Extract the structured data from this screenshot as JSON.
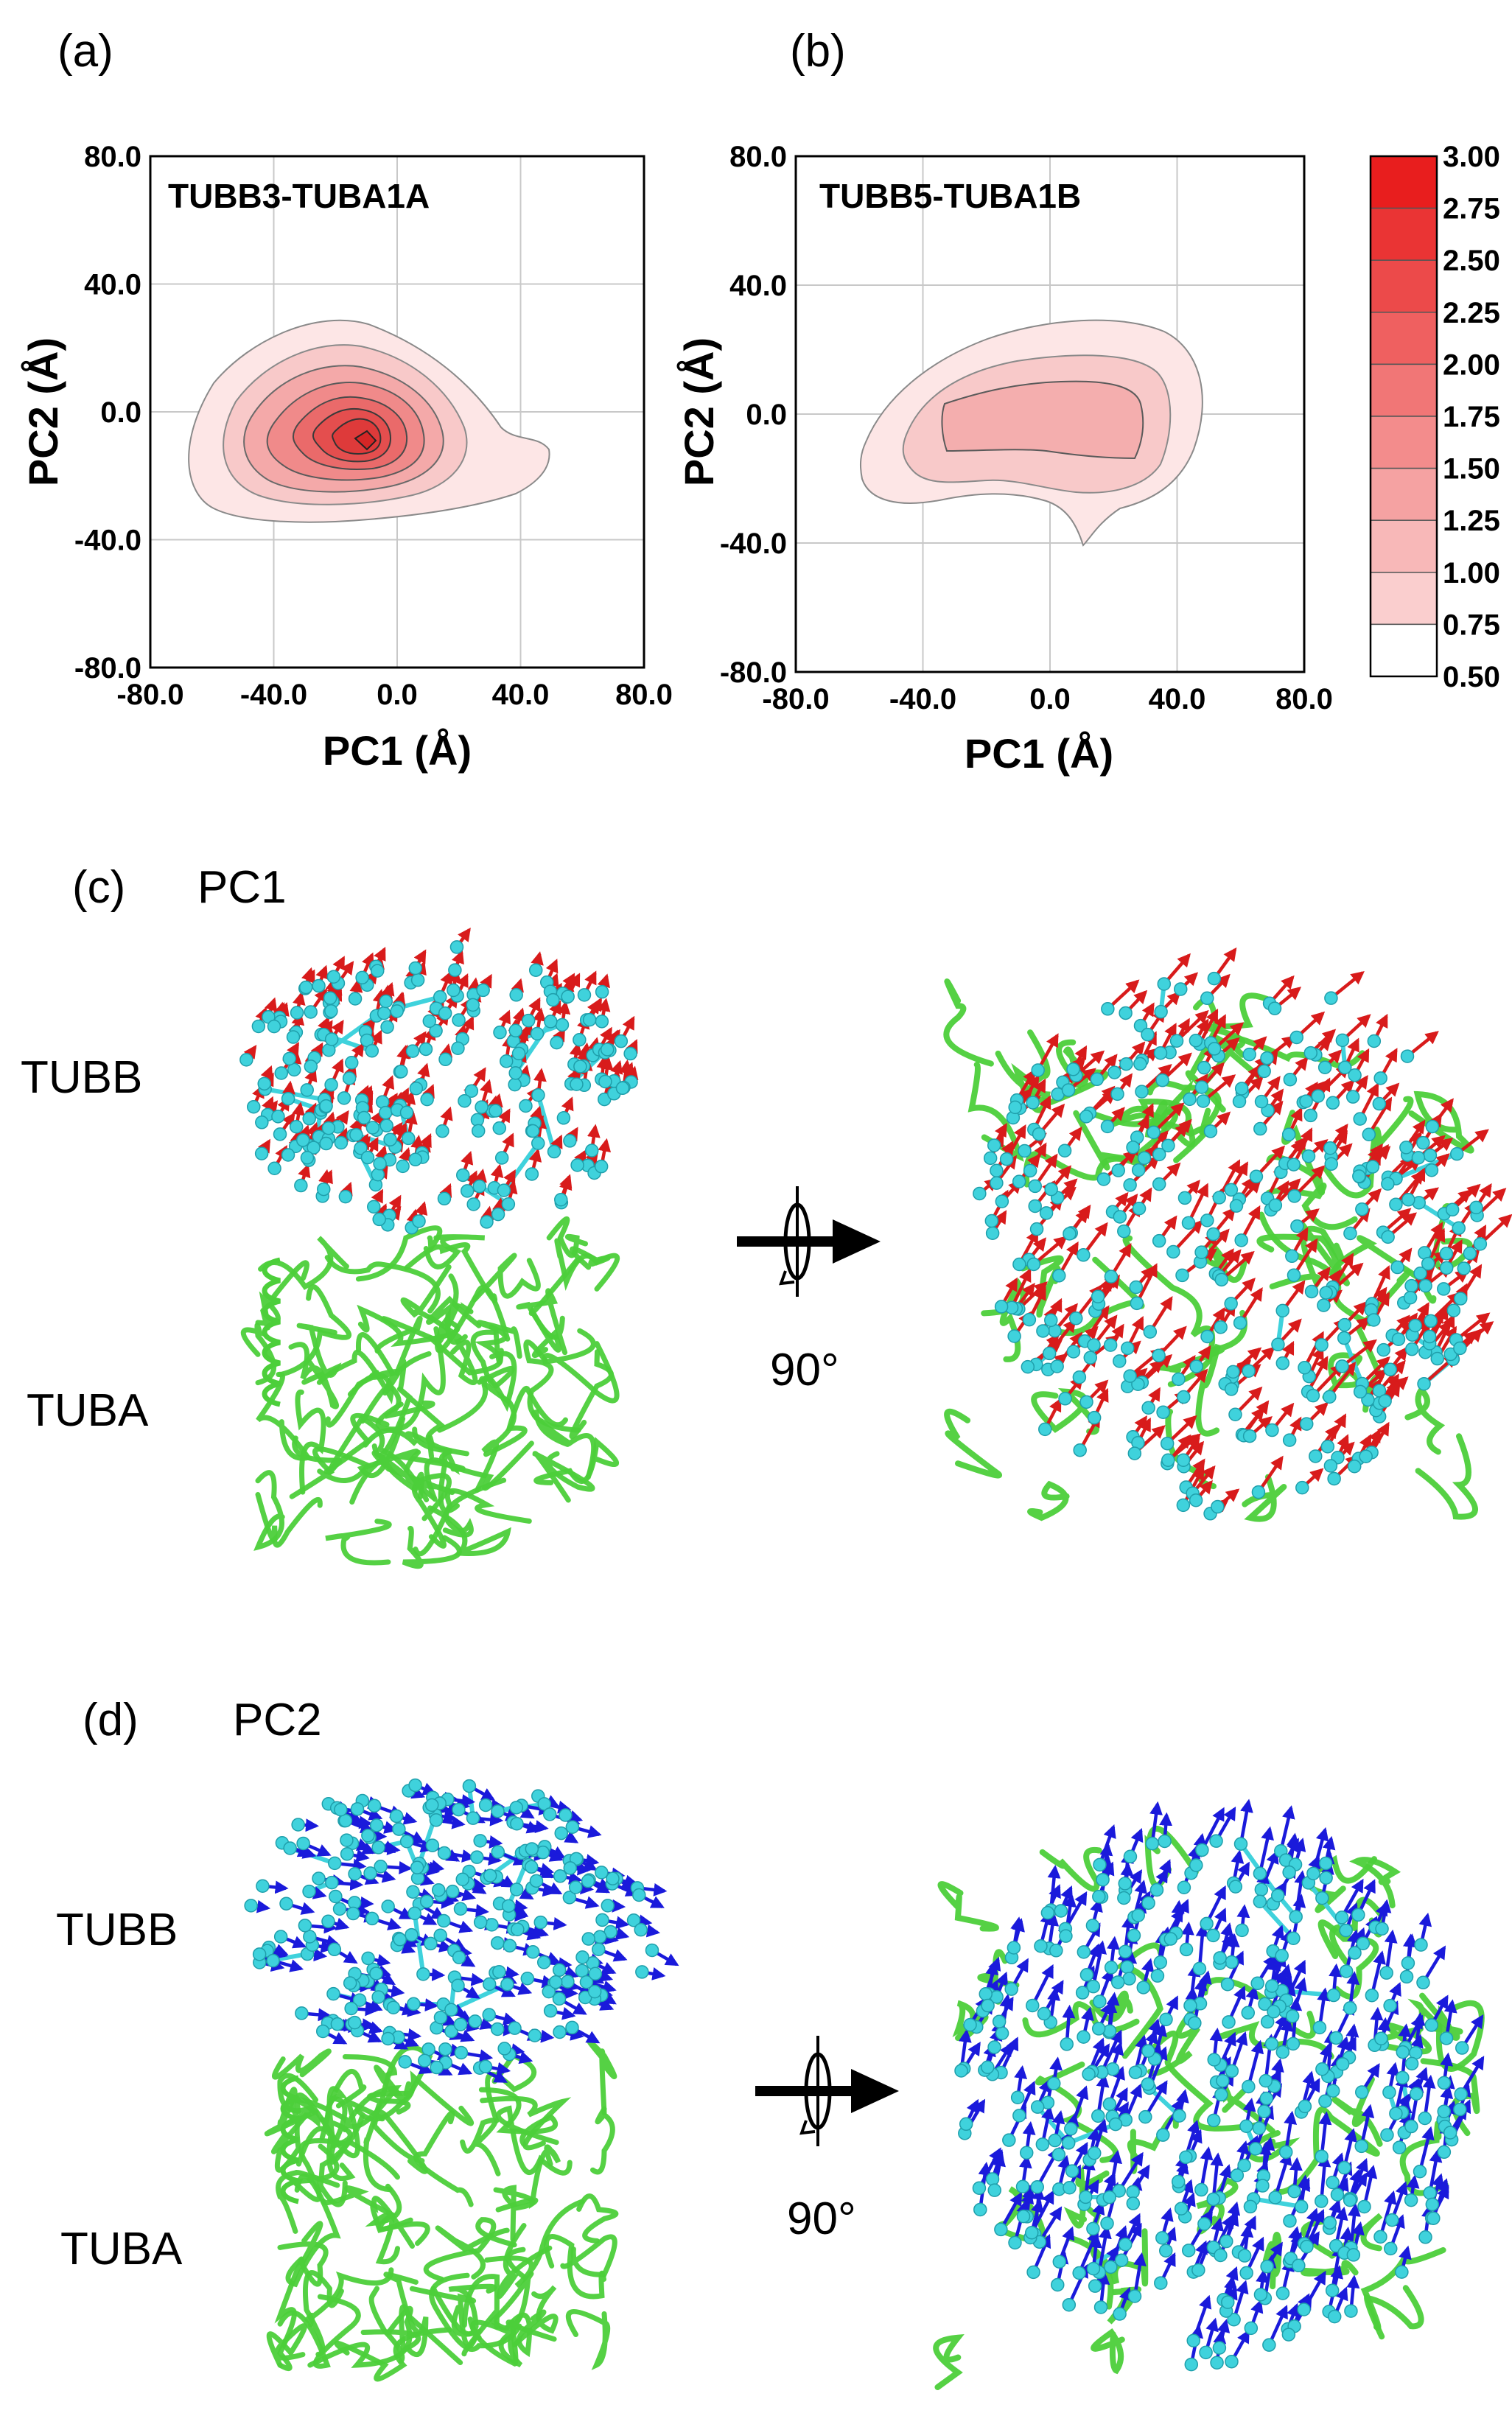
{
  "panels": {
    "a": "(a)",
    "b": "(b)",
    "c": "(c)",
    "d": "(d)"
  },
  "panel_c_title": "PC1",
  "panel_d_title": "PC2",
  "mol_labels": {
    "tubb": "TUBB",
    "tuba": "TUBA"
  },
  "rotation_label": "90°",
  "colors": {
    "contour_low": "#fde6e6",
    "contour_high": "#e8332f",
    "arrow_pc1": "#d81b1b",
    "arrow_pc2": "#1a1adb",
    "backbone": "#4ccf3a",
    "atom": "#3fd2dc",
    "grid": "#c8c8c8"
  },
  "chart_data": [
    {
      "type": "heatmap",
      "title": "TUBB3-TUBA1A",
      "xlabel": "PC1 (Å)",
      "ylabel": "PC2 (Å)",
      "xlim": [
        -80.0,
        80.0
      ],
      "ylim": [
        -80.0,
        80.0
      ],
      "xticks": [
        "-80.0",
        "-40.0",
        "0.0",
        "40.0",
        "80.0"
      ],
      "yticks": [
        "80.0",
        "40.0",
        "0.0",
        "-40.0",
        "-80.0"
      ],
      "grid": true,
      "peak": {
        "x": -10,
        "y": -1
      },
      "max_level": 3.0
    },
    {
      "type": "heatmap",
      "title": "TUBB5-TUBA1B",
      "xlabel": "PC1 (Å)",
      "ylabel": "PC2 (Å)",
      "xlim": [
        -80.0,
        80.0
      ],
      "ylim": [
        -80.0,
        80.0
      ],
      "xticks": [
        "-80.0",
        "-40.0",
        "0.0",
        "40.0",
        "80.0"
      ],
      "yticks": [
        "80.0",
        "40.0",
        "0.0",
        "-40.0",
        "-80.0"
      ],
      "grid": true,
      "peak": {
        "x": -5,
        "y": 0
      },
      "max_level": 1.5
    }
  ],
  "colorbar": {
    "levels": [
      "3.00",
      "2.75",
      "2.50",
      "2.25",
      "2.00",
      "1.75",
      "1.50",
      "1.25",
      "1.00",
      "0.75",
      "0.50"
    ],
    "level_values": [
      3.0,
      2.75,
      2.5,
      2.25,
      2.0,
      1.75,
      1.5,
      1.25,
      1.0,
      0.75,
      0.5
    ]
  }
}
